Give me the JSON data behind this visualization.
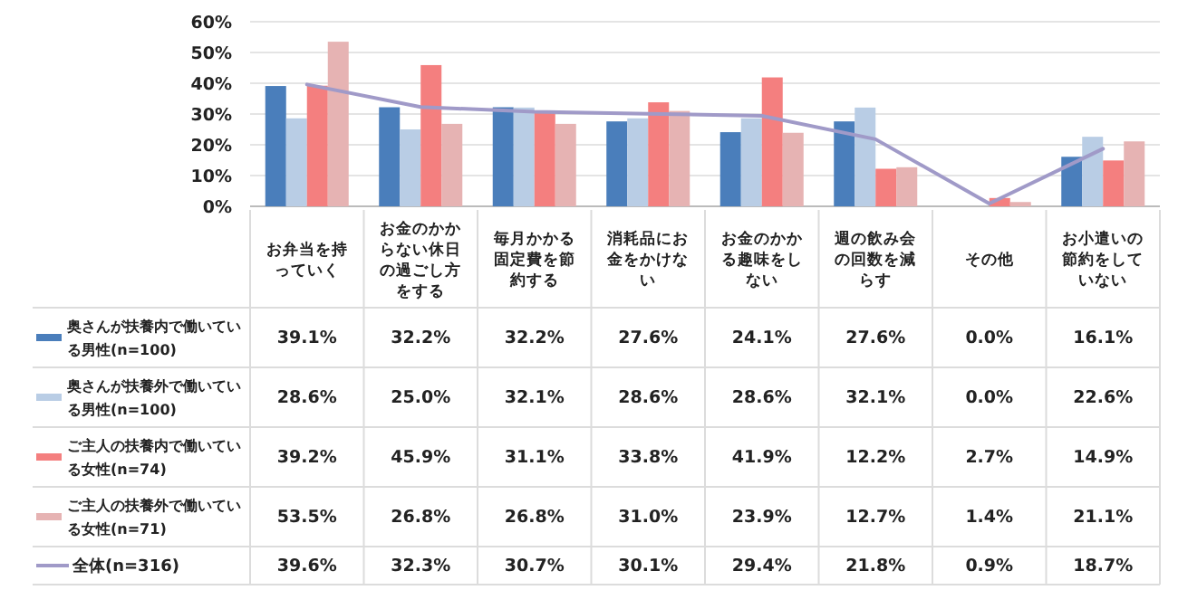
{
  "chart_data": {
    "type": "bar",
    "categories": [
      "お弁当を持っていく",
      "お金のかからない休日の過ごし方をする",
      "毎月かかる固定費を節約する",
      "消耗品にお金をかけない",
      "お金のかかる趣味をしない",
      "週の飲み会の回数を減らす",
      "その他",
      "お小遣いの節約をしていない"
    ],
    "ylim": [
      0,
      60
    ],
    "yticks": [
      {
        "value": 0,
        "label": "0%"
      },
      {
        "value": 10,
        "label": "10%"
      },
      {
        "value": 20,
        "label": "20%"
      },
      {
        "value": 30,
        "label": "30%"
      },
      {
        "value": 40,
        "label": "40%"
      },
      {
        "value": 50,
        "label": "50%"
      },
      {
        "value": 60,
        "label": "60%"
      }
    ],
    "grid": "y",
    "legend": "bottom",
    "series": [
      {
        "name": "奥さんが扶養内で働いている男性(n=100)",
        "color": "#4a7ebb",
        "values": [
          39.1,
          32.2,
          32.2,
          27.6,
          24.1,
          27.6,
          0.0,
          16.1
        ],
        "value_labels": [
          "39.1%",
          "32.2%",
          "32.2%",
          "27.6%",
          "24.1%",
          "27.6%",
          "0.0%",
          "16.1%"
        ]
      },
      {
        "name": "奥さんが扶養外で働いている男性(n=100)",
        "color": "#b9cde5",
        "values": [
          28.6,
          25.0,
          32.1,
          28.6,
          28.6,
          32.1,
          0.0,
          22.6
        ],
        "value_labels": [
          "28.6%",
          "25.0%",
          "32.1%",
          "28.6%",
          "28.6%",
          "32.1%",
          "0.0%",
          "22.6%"
        ]
      },
      {
        "name": "ご主人の扶養内で働いている女性(n=74)",
        "color": "#f47f7f",
        "values": [
          39.2,
          45.9,
          31.1,
          33.8,
          41.9,
          12.2,
          2.7,
          14.9
        ],
        "value_labels": [
          "39.2%",
          "45.9%",
          "31.1%",
          "33.8%",
          "41.9%",
          "12.2%",
          "2.7%",
          "14.9%"
        ]
      },
      {
        "name": "ご主人の扶養外で働いている女性(n=71)",
        "color": "#e6b3b3",
        "values": [
          53.5,
          26.8,
          26.8,
          31.0,
          23.9,
          12.7,
          1.4,
          21.1
        ],
        "value_labels": [
          "53.5%",
          "26.8%",
          "26.8%",
          "31.0%",
          "23.9%",
          "12.7%",
          "1.4%",
          "21.1%"
        ]
      },
      {
        "name": "全体(n=316)",
        "type": "line",
        "color": "#a09ac8",
        "values": [
          39.6,
          32.3,
          30.7,
          30.1,
          29.4,
          21.8,
          0.9,
          18.7
        ],
        "value_labels": [
          "39.6%",
          "32.3%",
          "30.7%",
          "30.1%",
          "29.4%",
          "21.8%",
          "0.9%",
          "18.7%"
        ]
      }
    ]
  }
}
